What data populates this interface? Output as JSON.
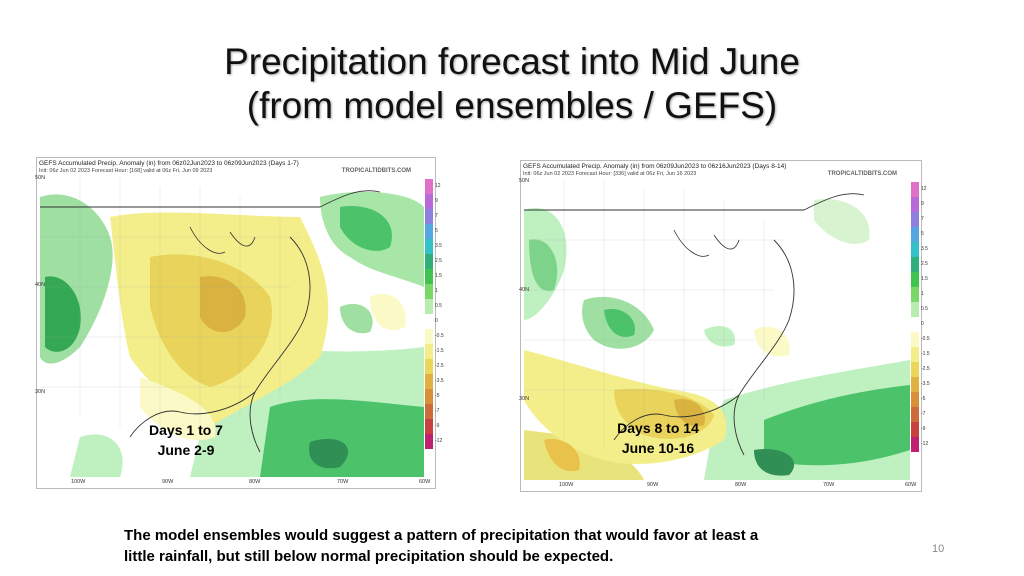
{
  "slide": {
    "title_line1": "Precipitation forecast into Mid June",
    "title_line2": "(from model ensembles / GEFS)",
    "caption_line1": "The model ensembles would suggest a pattern of precipitation that would favor at least a",
    "caption_line2": "little rainfall, but still below normal precipitation should be expected.",
    "page_number": "10"
  },
  "colors": {
    "wet": "#4cc36a",
    "wet_light": "#bff0c0",
    "dry": "#f2ec7a",
    "dry_light": "#fbf9c6",
    "very_dry": "#e8c24a",
    "land": "#ffffff"
  },
  "maps": [
    {
      "header": "GEFS Accumulated Precip. Anomaly (in) from 06z02Jun2023 to 06z09Jun2023 (Days 1-7)",
      "subheader": "Init: 06z Jun 02 2023   Forecast Hour: [168]   valid at 06z Fri, Jun 09 2023",
      "brand": "TROPICALTIDBITS.COM",
      "label_line1": "Days 1  to 7",
      "label_line2": "June 2-9",
      "lat_labels": [
        "50N",
        "40N",
        "30N"
      ],
      "lon_labels": [
        "100W",
        "90W",
        "80W",
        "70W",
        "60W"
      ]
    },
    {
      "header": "GEFS Accumulated Precip. Anomaly (in) from 06z09Jun2023 to 06z16Jun2023 (Days 8-14)",
      "subheader": "Init: 06z Jun 02 2023   Forecast Hour: [336]   valid at 06z Fri, Jun 16 2023",
      "brand": "TROPICALTIDBITS.COM",
      "label_line1": "Days 8  to 14",
      "label_line2": "June 10-16",
      "lat_labels": [
        "50N",
        "40N",
        "30N"
      ],
      "lon_labels": [
        "100W",
        "90W",
        "80W",
        "70W",
        "60W"
      ]
    }
  ],
  "colorbar_ticks": [
    "12",
    "9",
    "7",
    "5",
    "3.5",
    "2.5",
    "1.5",
    "1",
    "0.5",
    "0",
    "-0.5",
    "-1.5",
    "-2.5",
    "-3.5",
    "-5",
    "-7",
    "-9",
    "-12"
  ]
}
